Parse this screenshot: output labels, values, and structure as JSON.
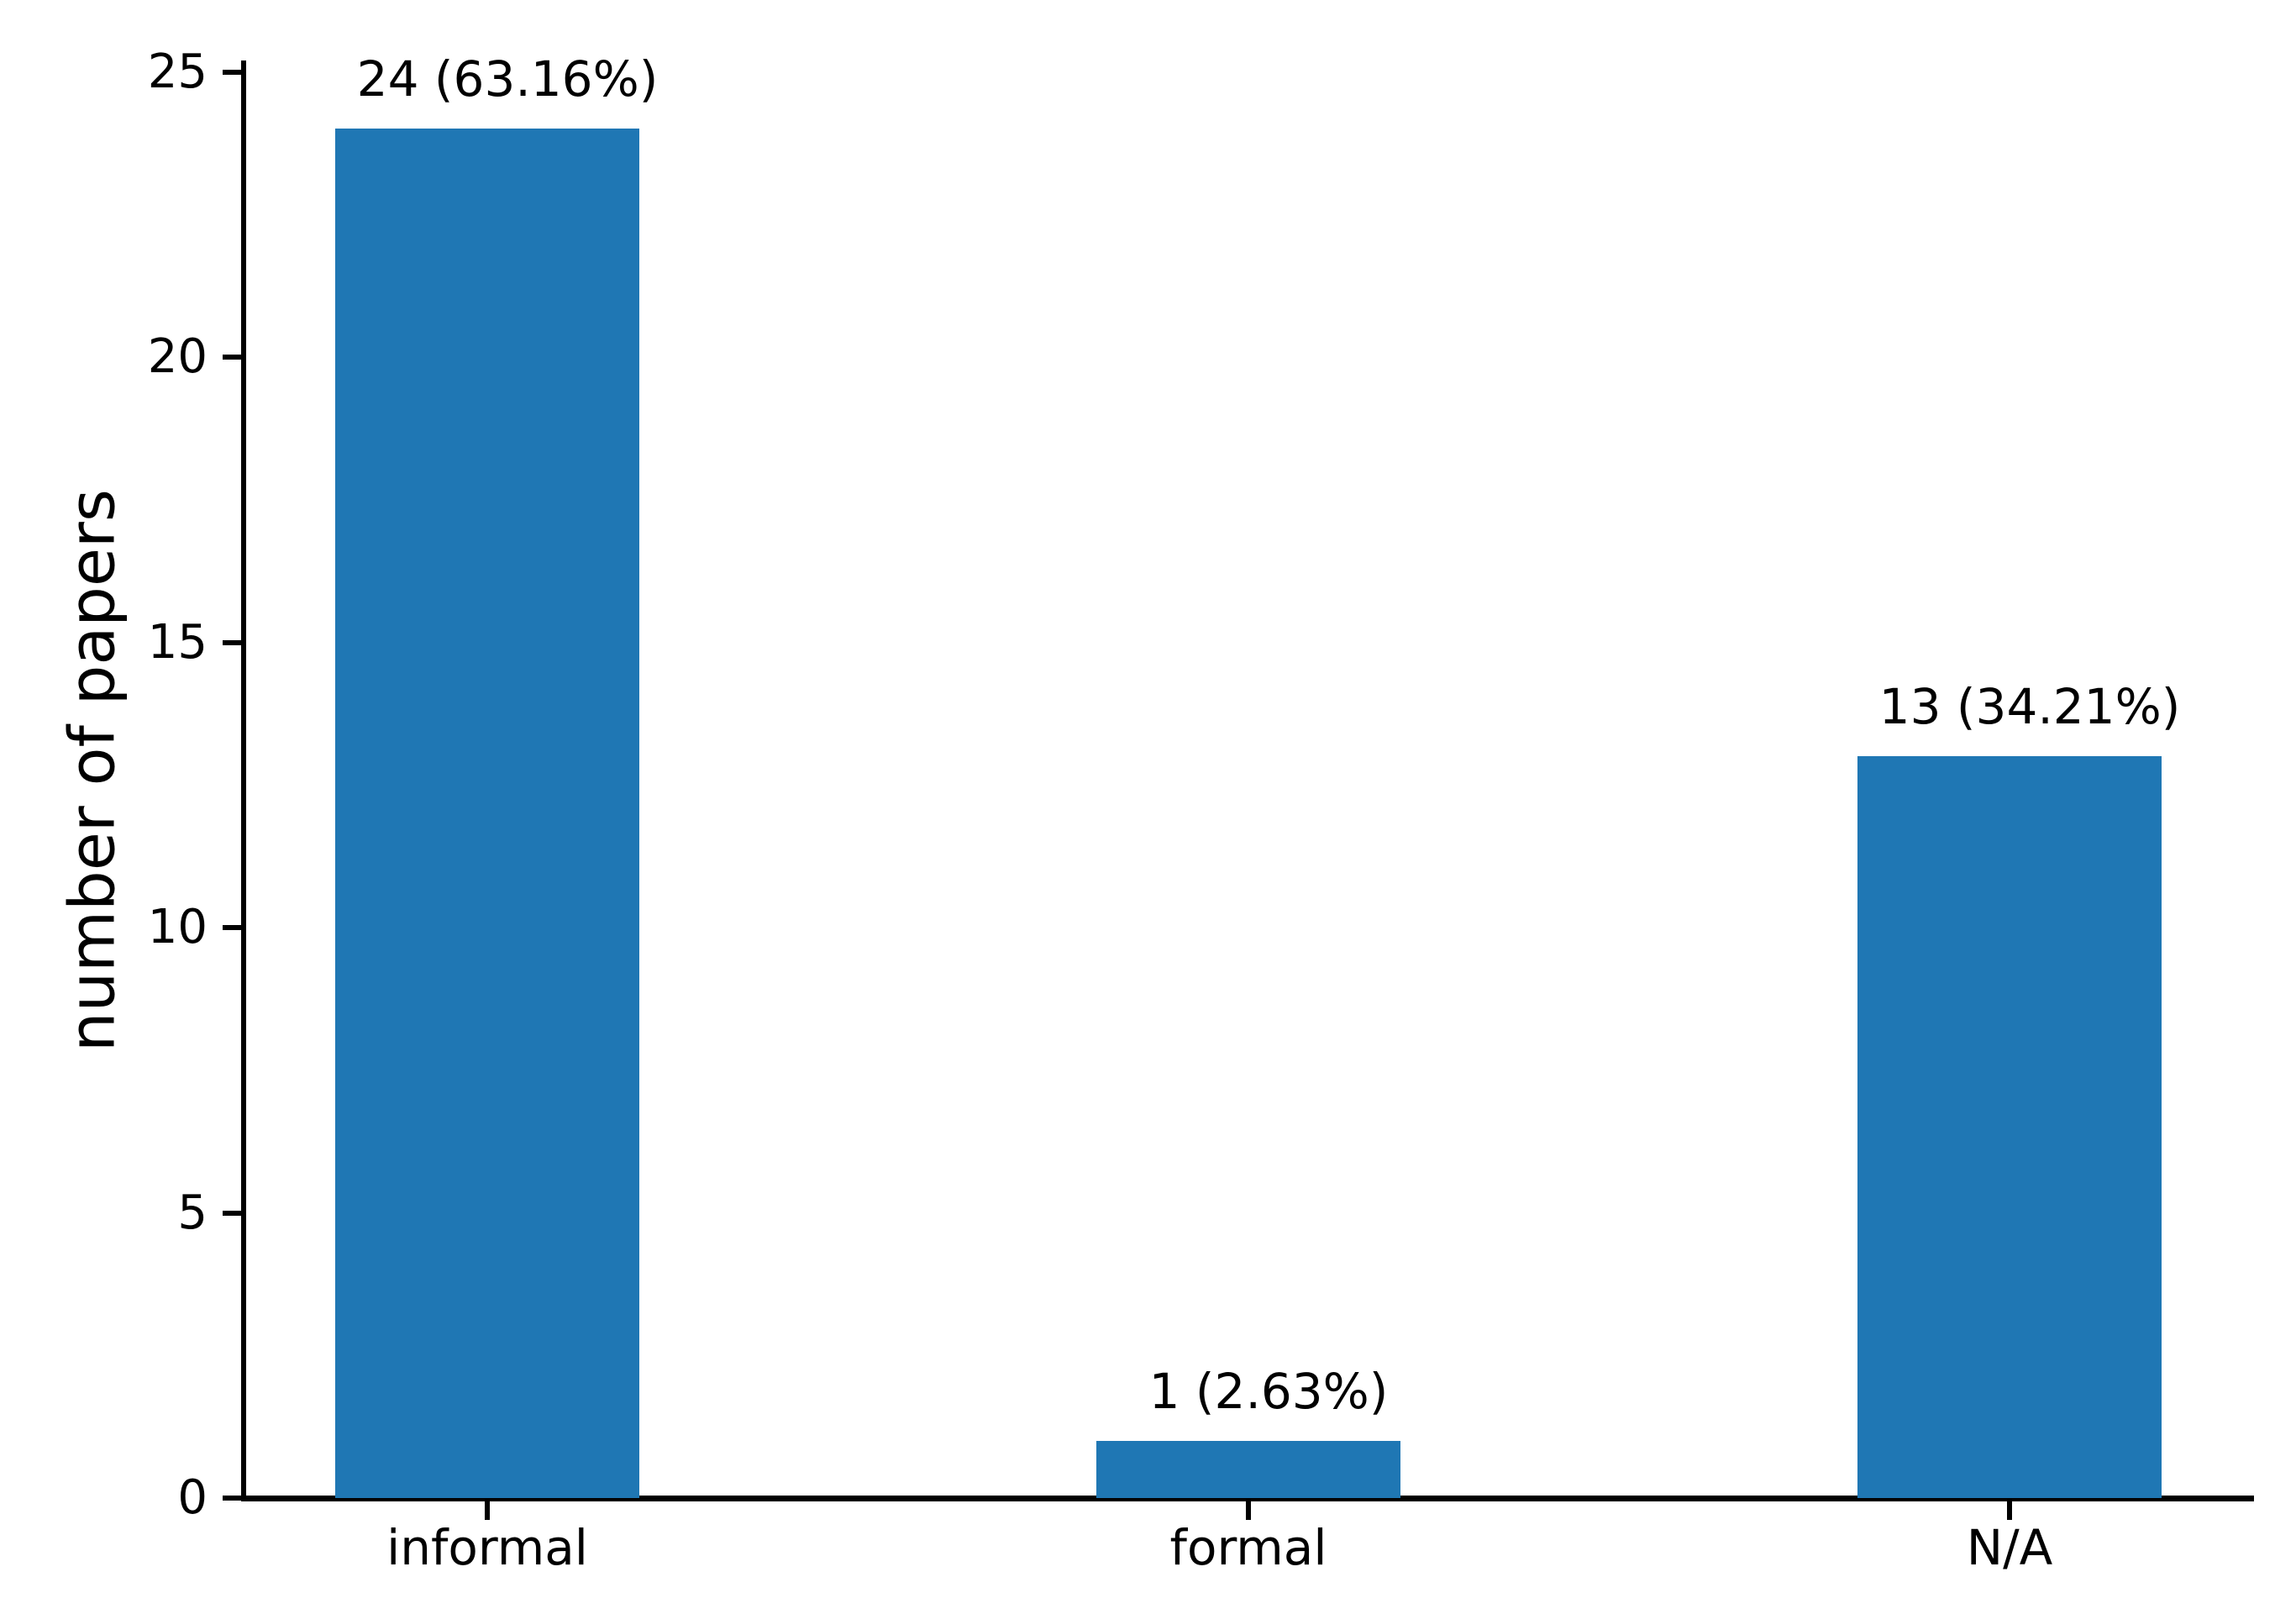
{
  "chart_data": {
    "type": "bar",
    "categories": [
      "informal",
      "formal",
      "N/A"
    ],
    "values": [
      24,
      1,
      13
    ],
    "value_labels": [
      "24 (63.16%)",
      "1 (2.63%)",
      "13 (34.21%)"
    ],
    "title": "",
    "xlabel": "",
    "ylabel": "number of papers",
    "yticks": [
      0,
      5,
      10,
      15,
      20,
      25
    ],
    "ylim": [
      0,
      25.2
    ],
    "grid": false,
    "legend": "none",
    "bar_color": "#1f77b4",
    "axis_color": "#000000",
    "text_color": "#000000"
  }
}
